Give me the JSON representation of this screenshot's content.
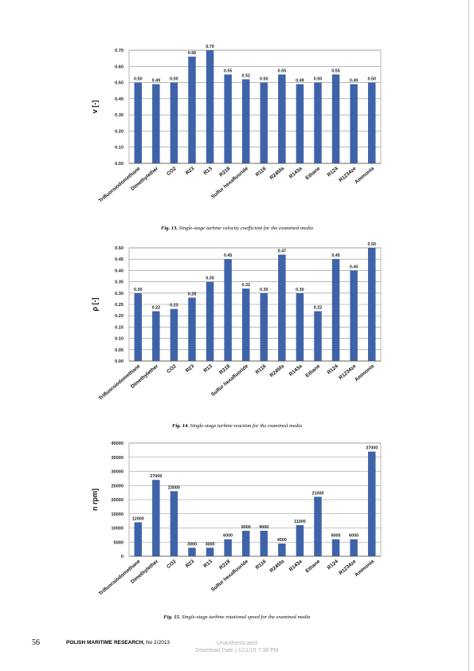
{
  "chart_data": [
    {
      "type": "bar",
      "ylabel": "v [-]",
      "ylim": [
        0,
        0.7
      ],
      "yticks": [
        "0.00",
        "0.10",
        "0.20",
        "0.30",
        "0.40",
        "0.50",
        "0.60",
        "0.70"
      ],
      "grid": true,
      "color": "#3f63a8",
      "categories": [
        "Trifluoroiodomethane",
        "Dimethylether",
        "CO2",
        "R23",
        "R13",
        "R218",
        "Sulfur hexafluoride",
        "R116",
        "R245fa",
        "R143a",
        "Ethane",
        "R124",
        "R1234ze",
        "Ammonia"
      ],
      "values": [
        0.5,
        0.49,
        0.5,
        0.66,
        0.7,
        0.55,
        0.52,
        0.5,
        0.55,
        0.49,
        0.5,
        0.55,
        0.49,
        0.5
      ],
      "labels": [
        "0.50",
        "0.49",
        "0.50",
        "0.66",
        "0.70",
        "0.55",
        "0.52",
        "0.50",
        "0.55",
        "0.49",
        "0.50",
        "0.55",
        "0.49",
        "0.50"
      ]
    },
    {
      "type": "bar",
      "ylabel": "ρ [-]",
      "ylim": [
        0,
        0.5
      ],
      "yticks": [
        "0.00",
        "0.05",
        "0.10",
        "0.15",
        "0.20",
        "0.25",
        "0.30",
        "0.35",
        "0.40",
        "0.45",
        "0.50"
      ],
      "grid": true,
      "color": "#3f63a8",
      "categories": [
        "Trifluoroiodomethane",
        "Dimethylether",
        "CO2",
        "R23",
        "R13",
        "R218",
        "Sulfur hexafluoride",
        "R116",
        "R245fa",
        "R143a",
        "Ethane",
        "R124",
        "R1234ze",
        "Ammonia"
      ],
      "values": [
        0.3,
        0.22,
        0.23,
        0.28,
        0.35,
        0.45,
        0.32,
        0.3,
        0.47,
        0.3,
        0.22,
        0.45,
        0.4,
        0.5
      ],
      "labels": [
        "0.30",
        "0.22",
        "0.23",
        "0.28",
        "0.35",
        "0.45",
        "0.32",
        "0.30",
        "0.47",
        "0.30",
        "0.22",
        "0.45",
        "0.40",
        "0.50"
      ]
    },
    {
      "type": "bar",
      "ylabel": "n rpm]",
      "ylim": [
        0,
        40000
      ],
      "yticks": [
        "0",
        "5000",
        "10000",
        "15000",
        "20000",
        "25000",
        "30000",
        "35000",
        "40000"
      ],
      "grid": true,
      "color": "#3f63a8",
      "categories": [
        "Trifluoroiodomethane",
        "Dimethylether",
        "CO2",
        "R23",
        "R13",
        "R218",
        "Sulfur hexafluoride",
        "R116",
        "R245fa",
        "R143a",
        "Ethane",
        "R124",
        "R1234ze",
        "Ammonia"
      ],
      "values": [
        12000,
        27000,
        23000,
        3000,
        3000,
        6000,
        9000,
        9000,
        4500,
        11000,
        21000,
        6000,
        6000,
        37000
      ],
      "labels": [
        "12000",
        "27000",
        "23000",
        "3000",
        "3000",
        "6000",
        "9000",
        "9000",
        "4500",
        "11000",
        "21000",
        "6000",
        "6000",
        "37000"
      ]
    }
  ],
  "captions": [
    {
      "fig": "Fig. 13.",
      "text": "Single-stage turbine velocity coefficient for the examined media"
    },
    {
      "fig": "Fig. 14.",
      "text": "Single-stage turbine reaction for the examined media"
    },
    {
      "fig": "Fig. 15.",
      "text": "Single-stage turbine rotational speed for the examined media"
    }
  ],
  "footer": {
    "page_number": "56",
    "journal": "POLISH MARITIME RESEARCH,",
    "issue": "No 2/2013",
    "watermark_line1": "Unauthenticated",
    "watermark_line2": "Download Date | 1/11/15 7:38 PM"
  }
}
